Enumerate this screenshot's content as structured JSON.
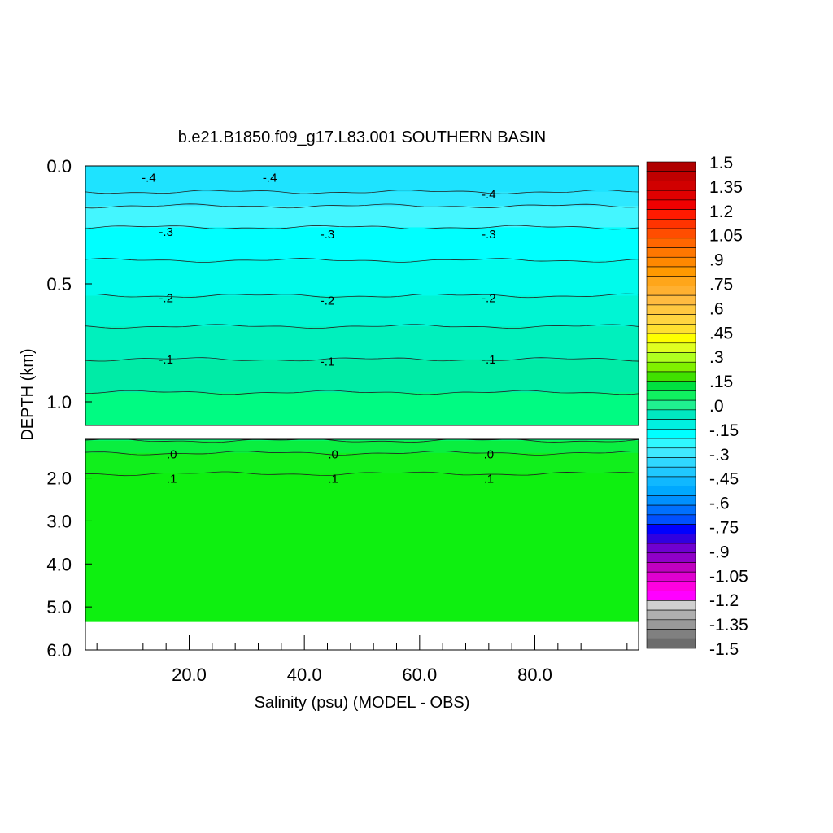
{
  "chart_data": {
    "type": "heatmap",
    "title": "b.e21.B1850.f09_g17.L83.001 SOUTHERN BASIN",
    "xlabel": "Salinity (psu) (MODEL - OBS)",
    "ylabel": "DEPTH (km)",
    "xlim": [
      2,
      98
    ],
    "x_ticks": [
      "20.0",
      "40.0",
      "60.0",
      "80.0"
    ],
    "panels": [
      {
        "name": "upper",
        "ylim": [
          0.0,
          1.1
        ],
        "y_ticks": [
          "0.0",
          "0.5",
          "1.0"
        ],
        "y_tick_values": [
          0.0,
          0.5,
          1.0
        ]
      },
      {
        "name": "lower",
        "ylim": [
          1.1,
          6.0
        ],
        "y_ticks": [
          "2.0",
          "3.0",
          "4.0",
          "5.0",
          "6.0"
        ],
        "y_tick_values": [
          2.0,
          3.0,
          4.0,
          5.0,
          6.0
        ]
      }
    ],
    "bottom_depth": 5.35,
    "contour_levels": [
      {
        "value": -0.45,
        "depth": 0.11
      },
      {
        "value": -0.4,
        "depth": 0.17
      },
      {
        "value": -0.35,
        "depth": 0.26
      },
      {
        "value": -0.3,
        "depth": 0.4
      },
      {
        "value": -0.25,
        "depth": 0.55
      },
      {
        "value": -0.2,
        "depth": 0.68
      },
      {
        "value": -0.15,
        "depth": 0.82
      },
      {
        "value": -0.1,
        "depth": 0.96
      },
      {
        "value": -0.05,
        "depth": 1.13
      },
      {
        "value": 0.0,
        "depth": 1.42
      },
      {
        "value": 0.05,
        "depth": 1.9
      }
    ],
    "contour_labels": [
      {
        "text": "-.4",
        "x": 13,
        "depth": 0.05
      },
      {
        "text": "-.4",
        "x": 34,
        "depth": 0.05
      },
      {
        "text": "-.4",
        "x": 72,
        "depth": 0.12
      },
      {
        "text": "-.3",
        "x": 16,
        "depth": 0.28
      },
      {
        "text": "-.3",
        "x": 44,
        "depth": 0.29
      },
      {
        "text": "-.3",
        "x": 72,
        "depth": 0.29
      },
      {
        "text": "-.2",
        "x": 16,
        "depth": 0.56
      },
      {
        "text": "-.2",
        "x": 44,
        "depth": 0.57
      },
      {
        "text": "-.2",
        "x": 72,
        "depth": 0.56
      },
      {
        "text": "-.1",
        "x": 16,
        "depth": 0.82
      },
      {
        "text": "-.1",
        "x": 44,
        "depth": 0.83
      },
      {
        "text": "-.1",
        "x": 72,
        "depth": 0.82
      },
      {
        "text": ".0",
        "x": 17,
        "depth": 1.45
      },
      {
        "text": ".0",
        "x": 45,
        "depth": 1.45
      },
      {
        "text": ".0",
        "x": 72,
        "depth": 1.45
      },
      {
        "text": ".1",
        "x": 17,
        "depth": 2.02
      },
      {
        "text": ".1",
        "x": 45,
        "depth": 2.02
      },
      {
        "text": ".1",
        "x": 72,
        "depth": 2.02
      }
    ],
    "fill_bands": [
      {
        "from": 0.0,
        "to": 0.11,
        "color": "#1ee3ff"
      },
      {
        "from": 0.11,
        "to": 0.17,
        "color": "#2ee8ff"
      },
      {
        "from": 0.17,
        "to": 0.26,
        "color": "#44f6ff"
      },
      {
        "from": 0.26,
        "to": 0.4,
        "color": "#00ffff"
      },
      {
        "from": 0.4,
        "to": 0.55,
        "color": "#00fbec"
      },
      {
        "from": 0.55,
        "to": 0.68,
        "color": "#00f5d4"
      },
      {
        "from": 0.68,
        "to": 0.82,
        "color": "#00f0bd"
      },
      {
        "from": 0.82,
        "to": 0.96,
        "color": "#00eba6"
      },
      {
        "from": 0.96,
        "to": 1.13,
        "color": "#00fb82"
      },
      {
        "from": 1.13,
        "to": 1.42,
        "color": "#0aee40"
      },
      {
        "from": 1.42,
        "to": 1.9,
        "color": "#11ef1c"
      },
      {
        "from": 1.9,
        "to": 5.35,
        "color": "#0ef010"
      }
    ],
    "colorbar": {
      "labels": [
        "1.5",
        "1.35",
        "1.2",
        "1.05",
        ".9",
        ".75",
        ".6",
        ".45",
        ".3",
        ".15",
        ".0",
        "-.15",
        "-.3",
        "-.45",
        "-.6",
        "-.75",
        "-.9",
        "-1.05",
        "-1.2",
        "-1.35",
        "-1.5"
      ],
      "colors": [
        "#b00000",
        "#c00000",
        "#d10000",
        "#e00000",
        "#f00000",
        "#ff1a00",
        "#ff3300",
        "#ff4d00",
        "#ff6600",
        "#ff7700",
        "#ff8800",
        "#ff9900",
        "#ffa61a",
        "#ffb030",
        "#ffbb40",
        "#ffc840",
        "#ffd540",
        "#ffe030",
        "#ffff00",
        "#e0ff20",
        "#b0ff20",
        "#80f000",
        "#40e000",
        "#00e040",
        "#10f060",
        "#20f090",
        "#00e8c0",
        "#00f0e0",
        "#00ffff",
        "#30f8ff",
        "#40e8ff",
        "#30d8ff",
        "#20c8ff",
        "#10b8ff",
        "#00a8ff",
        "#0090ff",
        "#0070ff",
        "#0050ff",
        "#0000ff",
        "#3000e0",
        "#7000d0",
        "#9000c8",
        "#c000c0",
        "#e000d0",
        "#ff00e0",
        "#ff00ff",
        "#d0d0d0",
        "#b0b0b0",
        "#999999",
        "#808080",
        "#6c6c6c"
      ]
    }
  }
}
